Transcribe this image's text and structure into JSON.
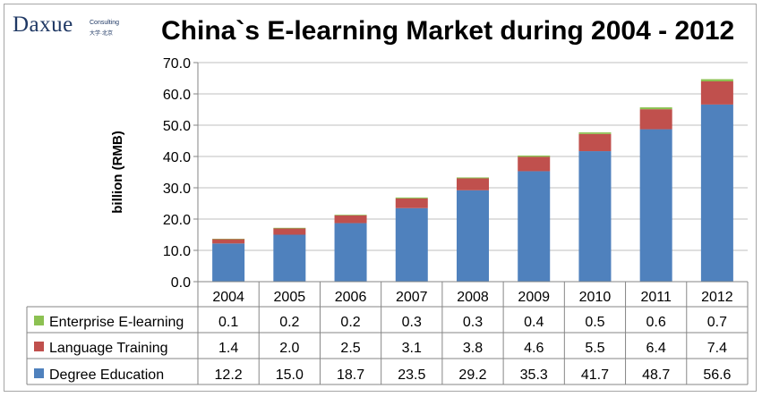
{
  "logo": {
    "name": "Daxue",
    "sub": "Consulting",
    "sub2": "大学·北京"
  },
  "chart_data": {
    "type": "bar",
    "stacked": true,
    "title": "China`s E-learning Market during 2004 - 2012",
    "ylabel": "billion (RMB)",
    "xlabel": "",
    "ylim": [
      0,
      70
    ],
    "yticks": [
      "0.0",
      "10.0",
      "20.0",
      "30.0",
      "40.0",
      "50.0",
      "60.0",
      "70.0"
    ],
    "grid": true,
    "legend": "data-table",
    "categories": [
      "2004",
      "2005",
      "2006",
      "2007",
      "2008",
      "2009",
      "2010",
      "2011",
      "2012"
    ],
    "series": [
      {
        "name": "Enterprise E-learning",
        "color": "#8cc152",
        "values": [
          0.1,
          0.2,
          0.2,
          0.3,
          0.3,
          0.4,
          0.5,
          0.6,
          0.7
        ],
        "labels": [
          "0.1",
          "0.2",
          "0.2",
          "0.3",
          "0.3",
          "0.4",
          "0.5",
          "0.6",
          "0.7"
        ]
      },
      {
        "name": "Language Training",
        "color": "#c0504d",
        "values": [
          1.4,
          2.0,
          2.5,
          3.1,
          3.8,
          4.6,
          5.5,
          6.4,
          7.4
        ],
        "labels": [
          "1.4",
          "2.0",
          "2.5",
          "3.1",
          "3.8",
          "4.6",
          "5.5",
          "6.4",
          "7.4"
        ]
      },
      {
        "name": "Degree Education",
        "color": "#4f81bd",
        "values": [
          12.2,
          15.0,
          18.7,
          23.5,
          29.2,
          35.3,
          41.7,
          48.7,
          56.6
        ],
        "labels": [
          "12.2",
          "15.0",
          "18.7",
          "23.5",
          "29.2",
          "35.3",
          "41.7",
          "48.7",
          "56.6"
        ]
      }
    ]
  }
}
